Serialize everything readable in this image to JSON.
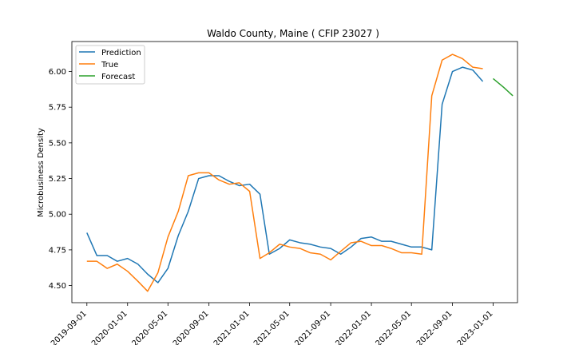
{
  "chart_data": {
    "type": "line",
    "title": "Waldo County, Maine ( CFIP 23027 )",
    "xlabel": "",
    "ylabel": "Microbusiness Density",
    "x_ticks": [
      "2019-09-01",
      "2020-01-01",
      "2020-05-01",
      "2020-09-01",
      "2021-01-01",
      "2021-05-01",
      "2021-09-01",
      "2022-01-01",
      "2022-05-01",
      "2022-09-01",
      "2023-01-01"
    ],
    "y_ticks": [
      "4.50",
      "4.75",
      "5.00",
      "5.25",
      "5.50",
      "5.75",
      "6.00"
    ],
    "ylim": [
      4.38,
      6.21
    ],
    "xlim": [
      "2019-07-18",
      "2023-03-15"
    ],
    "legend": {
      "position": "top-left",
      "entries": [
        "Prediction",
        "True",
        "Forecast"
      ]
    },
    "grid": false,
    "colors": {
      "Prediction": "#1f77b4",
      "True": "#ff7f0e",
      "Forecast": "#2ca02c"
    },
    "series": [
      {
        "name": "Prediction",
        "x": [
          "2019-09-01",
          "2019-10-01",
          "2019-11-01",
          "2019-12-01",
          "2020-01-01",
          "2020-02-01",
          "2020-03-01",
          "2020-04-01",
          "2020-05-01",
          "2020-06-01",
          "2020-07-01",
          "2020-08-01",
          "2020-09-01",
          "2020-10-01",
          "2020-11-01",
          "2020-12-01",
          "2021-01-01",
          "2021-02-01",
          "2021-03-01",
          "2021-04-01",
          "2021-05-01",
          "2021-06-01",
          "2021-07-01",
          "2021-08-01",
          "2021-09-01",
          "2021-10-01",
          "2021-11-01",
          "2021-12-01",
          "2022-01-01",
          "2022-02-01",
          "2022-03-01",
          "2022-04-01",
          "2022-05-01",
          "2022-06-01",
          "2022-07-01",
          "2022-08-01",
          "2022-09-01",
          "2022-10-01",
          "2022-11-01",
          "2022-12-01"
        ],
        "values": [
          4.87,
          4.71,
          4.71,
          4.67,
          4.69,
          4.65,
          4.58,
          4.52,
          4.62,
          4.85,
          5.02,
          5.25,
          5.27,
          5.27,
          5.23,
          5.2,
          5.21,
          5.14,
          4.72,
          4.76,
          4.82,
          4.8,
          4.79,
          4.77,
          4.76,
          4.72,
          4.77,
          4.83,
          4.84,
          4.81,
          4.81,
          4.79,
          4.77,
          4.77,
          4.75,
          5.77,
          6.0,
          6.03,
          6.01,
          5.93
        ]
      },
      {
        "name": "True",
        "x": [
          "2019-09-01",
          "2019-10-01",
          "2019-11-01",
          "2019-12-01",
          "2020-01-01",
          "2020-02-01",
          "2020-03-01",
          "2020-04-01",
          "2020-05-01",
          "2020-06-01",
          "2020-07-01",
          "2020-08-01",
          "2020-09-01",
          "2020-10-01",
          "2020-11-01",
          "2020-12-01",
          "2021-01-01",
          "2021-02-01",
          "2021-03-01",
          "2021-04-01",
          "2021-05-01",
          "2021-06-01",
          "2021-07-01",
          "2021-08-01",
          "2021-09-01",
          "2021-10-01",
          "2021-11-01",
          "2021-12-01",
          "2022-01-01",
          "2022-02-01",
          "2022-03-01",
          "2022-04-01",
          "2022-05-01",
          "2022-06-01",
          "2022-07-01",
          "2022-08-01",
          "2022-09-01",
          "2022-10-01",
          "2022-11-01",
          "2022-12-01"
        ],
        "values": [
          4.67,
          4.67,
          4.62,
          4.65,
          4.6,
          4.53,
          4.46,
          4.59,
          4.84,
          5.02,
          5.27,
          5.29,
          5.29,
          5.24,
          5.21,
          5.22,
          5.16,
          4.69,
          4.73,
          4.79,
          4.77,
          4.76,
          4.73,
          4.72,
          4.68,
          4.74,
          4.8,
          4.81,
          4.78,
          4.78,
          4.76,
          4.73,
          4.73,
          4.72,
          5.83,
          6.08,
          6.12,
          6.09,
          6.03,
          6.02
        ]
      },
      {
        "name": "Forecast",
        "x": [
          "2023-01-01",
          "2023-02-01",
          "2023-03-01"
        ],
        "values": [
          5.95,
          5.89,
          5.83
        ]
      }
    ]
  }
}
